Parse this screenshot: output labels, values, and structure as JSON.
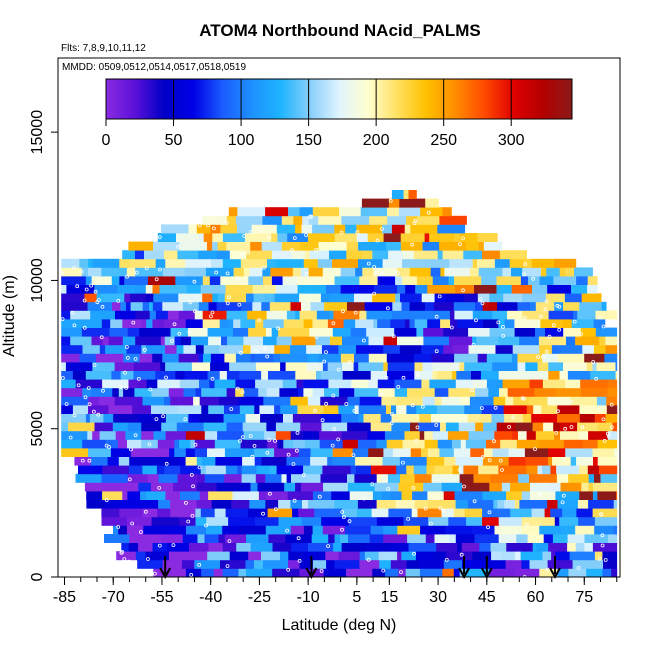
{
  "chart_data": {
    "type": "heatmap",
    "title": "ATOM4 Northbound NAcid_PALMS",
    "flights_label": "Flts: 7,8,9,10,11,12",
    "dates_label": "MMDD: 0509,0512,0514,0517,0518,0519",
    "xlabel": "Latitude (deg N)",
    "ylabel": "Altitude (m)",
    "x_tick_labels": [
      "-85",
      "-70",
      "-55",
      "-40",
      "-25",
      "-10",
      "5",
      "15",
      "30",
      "45",
      "60",
      "75"
    ],
    "x_tick_values": [
      -85,
      -70,
      -55,
      -40,
      -25,
      -10,
      5,
      15,
      30,
      45,
      60,
      75
    ],
    "y_tick_labels": [
      "0",
      "5000",
      "10000",
      "15000"
    ],
    "y_tick_values": [
      0,
      5000,
      10000,
      15000
    ],
    "xlim": [
      -87,
      86
    ],
    "ylim": [
      0,
      17500
    ],
    "colorbar": {
      "min": 0,
      "max": 345,
      "tick_labels": [
        "0",
        "50",
        "100",
        "150",
        "200",
        "250",
        "300"
      ],
      "tick_values": [
        0,
        50,
        100,
        150,
        200,
        250,
        300
      ],
      "stops": [
        "#8a2be2",
        "#5a10d8",
        "#0000c8",
        "#0000e6",
        "#1a5cff",
        "#1e90ff",
        "#1eb4ff",
        "#87cefa",
        "#e0f4ff",
        "#ffffd0",
        "#ffe060",
        "#ffc000",
        "#ff8c00",
        "#ff4a00",
        "#e00000",
        "#b40000",
        "#8b1a1a"
      ]
    },
    "profile_arrows_lat": [
      -54,
      -9,
      38,
      45,
      66
    ],
    "altitude_top_profile": [
      {
        "lat": -86,
        "alt": 10400
      },
      {
        "lat": -80,
        "alt": 10600
      },
      {
        "lat": -70,
        "alt": 10700
      },
      {
        "lat": -60,
        "alt": 11200
      },
      {
        "lat": -50,
        "alt": 11800
      },
      {
        "lat": -40,
        "alt": 12000
      },
      {
        "lat": -30,
        "alt": 12300
      },
      {
        "lat": -20,
        "alt": 12300
      },
      {
        "lat": -10,
        "alt": 12400
      },
      {
        "lat": 0,
        "alt": 12400
      },
      {
        "lat": 10,
        "alt": 12500
      },
      {
        "lat": 20,
        "alt": 12900
      },
      {
        "lat": 30,
        "alt": 12400
      },
      {
        "lat": 40,
        "alt": 11600
      },
      {
        "lat": 50,
        "alt": 11100
      },
      {
        "lat": 60,
        "alt": 10700
      },
      {
        "lat": 70,
        "alt": 10500
      },
      {
        "lat": 75,
        "alt": 10300
      },
      {
        "lat": 80,
        "alt": 9800
      },
      {
        "lat": 84,
        "alt": 8200
      }
    ]
  }
}
